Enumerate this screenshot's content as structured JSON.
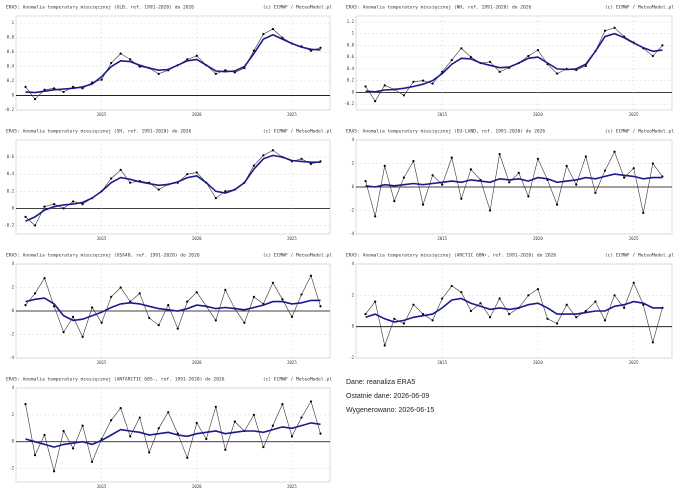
{
  "chart_data": [
    {
      "type": "line",
      "title": "ERA5: Anomalia temperatury miesięcznej (GLB, ref. 1991-2020) do 2026",
      "credit": "(c) ECMWF / MeteoModel.pl",
      "x": [
        2011,
        2011.5,
        2012,
        2012.5,
        2013,
        2013.5,
        2014,
        2014.5,
        2015,
        2015.5,
        2016,
        2016.5,
        2017,
        2017.5,
        2018,
        2018.5,
        2019,
        2019.5,
        2020,
        2020.5,
        2021,
        2021.5,
        2022,
        2022.5,
        2023,
        2023.5,
        2024,
        2024.5,
        2025,
        2025.5,
        2026,
        2026.5
      ],
      "series": [
        {
          "color": "#333333",
          "values": [
            0.12,
            -0.05,
            0.08,
            0.1,
            0.05,
            0.12,
            0.1,
            0.18,
            0.22,
            0.45,
            0.58,
            0.5,
            0.4,
            0.38,
            0.3,
            0.35,
            0.42,
            0.5,
            0.55,
            0.42,
            0.3,
            0.35,
            0.32,
            0.38,
            0.62,
            0.85,
            0.92,
            0.8,
            0.72,
            0.68,
            0.62,
            0.66
          ]
        },
        {
          "color": "#1a1a8c",
          "values": [
            0.05,
            0.04,
            0.06,
            0.08,
            0.09,
            0.1,
            0.12,
            0.16,
            0.26,
            0.4,
            0.48,
            0.47,
            0.42,
            0.38,
            0.35,
            0.36,
            0.42,
            0.48,
            0.5,
            0.42,
            0.34,
            0.33,
            0.34,
            0.4,
            0.58,
            0.78,
            0.84,
            0.78,
            0.72,
            0.67,
            0.64,
            0.63
          ]
        }
      ],
      "xlim": [
        2010.5,
        2027
      ],
      "xticks": [
        2015,
        2020,
        2025
      ],
      "ylim": [
        -0.2,
        1.1
      ],
      "yticks": [
        -0.2,
        0,
        0.2,
        0.4,
        0.6,
        0.8,
        1
      ],
      "grid": true
    },
    {
      "type": "line",
      "title": "ERA5: Anomalia temperatury miesięcznej (NH, ref. 1991-2020) do 2026",
      "credit": "(c) ECMWF / MeteoModel.pl",
      "x": [
        2011,
        2011.5,
        2012,
        2012.5,
        2013,
        2013.5,
        2014,
        2014.5,
        2015,
        2015.5,
        2016,
        2016.5,
        2017,
        2017.5,
        2018,
        2018.5,
        2019,
        2019.5,
        2020,
        2020.5,
        2021,
        2021.5,
        2022,
        2022.5,
        2023,
        2023.5,
        2024,
        2024.5,
        2025,
        2025.5,
        2026,
        2026.5
      ],
      "series": [
        {
          "color": "#333333",
          "values": [
            0.1,
            -0.15,
            0.12,
            0.05,
            -0.05,
            0.18,
            0.2,
            0.15,
            0.35,
            0.55,
            0.75,
            0.6,
            0.5,
            0.52,
            0.35,
            0.42,
            0.5,
            0.62,
            0.72,
            0.48,
            0.32,
            0.4,
            0.38,
            0.45,
            0.7,
            1.05,
            1.1,
            0.95,
            0.85,
            0.75,
            0.62,
            0.8
          ]
        },
        {
          "color": "#1a1a8c",
          "values": [
            0.02,
            0.01,
            0.04,
            0.05,
            0.07,
            0.1,
            0.14,
            0.2,
            0.32,
            0.48,
            0.58,
            0.57,
            0.5,
            0.46,
            0.42,
            0.43,
            0.5,
            0.58,
            0.6,
            0.5,
            0.4,
            0.39,
            0.4,
            0.48,
            0.7,
            0.95,
            1.0,
            0.93,
            0.84,
            0.76,
            0.7,
            0.72
          ]
        }
      ],
      "xlim": [
        2010.5,
        2027
      ],
      "xticks": [
        2015,
        2020,
        2025
      ],
      "ylim": [
        -0.3,
        1.3
      ],
      "yticks": [
        -0.2,
        0,
        0.2,
        0.4,
        0.6,
        0.8,
        1,
        1.2
      ],
      "grid": true
    },
    {
      "type": "line",
      "title": "ERA5: Anomalia temperatury miesięcznej (SH, ref. 1991-2020) do 2026",
      "credit": "(c) ECMWF / MeteoModel.pl",
      "x": [
        2011,
        2011.5,
        2012,
        2012.5,
        2013,
        2013.5,
        2014,
        2014.5,
        2015,
        2015.5,
        2016,
        2016.5,
        2017,
        2017.5,
        2018,
        2018.5,
        2019,
        2019.5,
        2020,
        2020.5,
        2021,
        2021.5,
        2022,
        2022.5,
        2023,
        2023.5,
        2024,
        2024.5,
        2025,
        2025.5,
        2026,
        2026.5
      ],
      "series": [
        {
          "color": "#333333",
          "values": [
            -0.1,
            -0.2,
            0.02,
            0.05,
            0.0,
            0.08,
            0.05,
            0.12,
            0.2,
            0.35,
            0.45,
            0.3,
            0.32,
            0.3,
            0.22,
            0.28,
            0.3,
            0.4,
            0.42,
            0.3,
            0.12,
            0.2,
            0.22,
            0.3,
            0.5,
            0.62,
            0.68,
            0.6,
            0.55,
            0.58,
            0.52,
            0.55
          ]
        },
        {
          "color": "#1a1a8c",
          "values": [
            -0.15,
            -0.1,
            -0.02,
            0.02,
            0.04,
            0.05,
            0.07,
            0.12,
            0.2,
            0.3,
            0.36,
            0.34,
            0.31,
            0.29,
            0.27,
            0.28,
            0.31,
            0.36,
            0.38,
            0.3,
            0.2,
            0.18,
            0.22,
            0.3,
            0.46,
            0.58,
            0.62,
            0.6,
            0.56,
            0.55,
            0.54,
            0.54
          ]
        }
      ],
      "xlim": [
        2010.5,
        2027
      ],
      "xticks": [
        2015,
        2020,
        2025
      ],
      "ylim": [
        -0.3,
        0.8
      ],
      "yticks": [
        -0.2,
        0,
        0.2,
        0.4,
        0.6
      ],
      "grid": true
    },
    {
      "type": "line",
      "title": "ERA5: Anomalia temperatury miesięcznej (EU-LAND, ref. 1991-2020) do 2026",
      "credit": "(c) ECMWF / MeteoModel.pl",
      "x": [
        2011,
        2011.5,
        2012,
        2012.5,
        2013,
        2013.5,
        2014,
        2014.5,
        2015,
        2015.5,
        2016,
        2016.5,
        2017,
        2017.5,
        2018,
        2018.5,
        2019,
        2019.5,
        2020,
        2020.5,
        2021,
        2021.5,
        2022,
        2022.5,
        2023,
        2023.5,
        2024,
        2024.5,
        2025,
        2025.5,
        2026,
        2026.5
      ],
      "series": [
        {
          "color": "#333333",
          "values": [
            0.5,
            -2.5,
            1.8,
            -1.2,
            0.8,
            2.2,
            -1.5,
            1.0,
            0.2,
            2.5,
            -1.0,
            1.5,
            0.6,
            -2.0,
            2.8,
            0.4,
            1.2,
            -0.8,
            2.4,
            0.6,
            -1.5,
            1.8,
            0.2,
            2.6,
            -0.5,
            1.4,
            3.0,
            0.8,
            1.6,
            -2.2,
            2.0,
            0.9
          ]
        },
        {
          "color": "#1a1a8c",
          "values": [
            0.1,
            0.0,
            0.2,
            0.1,
            0.2,
            0.3,
            0.2,
            0.3,
            0.4,
            0.5,
            0.4,
            0.6,
            0.5,
            0.4,
            0.7,
            0.6,
            0.7,
            0.5,
            0.8,
            0.7,
            0.4,
            0.5,
            0.6,
            0.8,
            0.7,
            0.9,
            1.1,
            1.0,
            0.9,
            0.7,
            0.8,
            0.8
          ]
        }
      ],
      "xlim": [
        2010.5,
        2027
      ],
      "xticks": [
        2015,
        2020,
        2025
      ],
      "ylim": [
        -4,
        4
      ],
      "yticks": [
        -4,
        -2,
        0,
        2,
        4
      ],
      "grid": true
    },
    {
      "type": "line",
      "title": "ERA5: Anomalia temperatury miesięcznej (USA48, ref. 1991-2020) do 2026",
      "credit": "(c) ECMWF / MeteoModel.pl",
      "x": [
        2011,
        2011.5,
        2012,
        2012.5,
        2013,
        2013.5,
        2014,
        2014.5,
        2015,
        2015.5,
        2016,
        2016.5,
        2017,
        2017.5,
        2018,
        2018.5,
        2019,
        2019.5,
        2020,
        2020.5,
        2021,
        2021.5,
        2022,
        2022.5,
        2023,
        2023.5,
        2024,
        2024.5,
        2025,
        2025.5,
        2026,
        2026.5
      ],
      "series": [
        {
          "color": "#333333",
          "values": [
            0.5,
            1.5,
            2.8,
            0.4,
            -1.8,
            -0.5,
            -2.2,
            0.3,
            -1.0,
            1.2,
            2.0,
            0.8,
            1.5,
            -0.6,
            -1.2,
            0.5,
            -1.5,
            0.8,
            1.6,
            0.4,
            -0.8,
            1.8,
            0.2,
            -1.0,
            1.2,
            0.6,
            2.4,
            1.0,
            -0.5,
            1.4,
            3.0,
            0.4
          ]
        },
        {
          "color": "#1a1a8c",
          "values": [
            0.8,
            1.0,
            1.1,
            0.6,
            -0.4,
            -0.8,
            -0.7,
            -0.4,
            -0.1,
            0.3,
            0.6,
            0.7,
            0.6,
            0.4,
            0.2,
            0.1,
            0.0,
            0.2,
            0.5,
            0.4,
            0.2,
            0.3,
            0.2,
            0.1,
            0.3,
            0.5,
            0.8,
            0.8,
            0.6,
            0.7,
            0.9,
            0.9
          ]
        }
      ],
      "xlim": [
        2010.5,
        2027
      ],
      "xticks": [
        2015,
        2020,
        2025
      ],
      "ylim": [
        -4,
        4
      ],
      "yticks": [
        -4,
        -2,
        0,
        2,
        4
      ],
      "grid": true
    },
    {
      "type": "line",
      "title": "ERA5: Anomalia temperatury miesięcznej (ARCTIC 60N+, ref. 1991-2020) do 2026",
      "credit": "(c) ECMWF / MeteoModel.pl",
      "x": [
        2011,
        2011.5,
        2012,
        2012.5,
        2013,
        2013.5,
        2014,
        2014.5,
        2015,
        2015.5,
        2016,
        2016.5,
        2017,
        2017.5,
        2018,
        2018.5,
        2019,
        2019.5,
        2020,
        2020.5,
        2021,
        2021.5,
        2022,
        2022.5,
        2023,
        2023.5,
        2024,
        2024.5,
        2025,
        2025.5,
        2026,
        2026.5
      ],
      "series": [
        {
          "color": "#333333",
          "values": [
            0.8,
            1.6,
            -1.2,
            0.5,
            0.2,
            1.4,
            0.8,
            0.4,
            1.8,
            2.6,
            2.2,
            1.0,
            1.5,
            0.6,
            1.8,
            0.8,
            1.2,
            2.0,
            2.4,
            0.5,
            0.2,
            1.4,
            0.6,
            1.0,
            1.6,
            0.4,
            2.0,
            1.2,
            2.8,
            1.4,
            -1.0,
            1.2
          ]
        },
        {
          "color": "#1a1a8c",
          "values": [
            0.6,
            0.8,
            0.5,
            0.3,
            0.4,
            0.6,
            0.7,
            0.8,
            1.2,
            1.7,
            1.8,
            1.5,
            1.3,
            1.1,
            1.2,
            1.1,
            1.2,
            1.4,
            1.5,
            1.2,
            0.8,
            0.8,
            0.8,
            0.9,
            1.0,
            1.0,
            1.3,
            1.4,
            1.6,
            1.5,
            1.2,
            1.2
          ]
        }
      ],
      "xlim": [
        2010.5,
        2027
      ],
      "xticks": [
        2015,
        2020,
        2025
      ],
      "ylim": [
        -2,
        4
      ],
      "yticks": [
        -2,
        0,
        2,
        4
      ],
      "grid": true
    },
    {
      "type": "line",
      "title": "ERA5: Anomalia temperatury miesięcznej (ANTARCTIC 60S-, ref. 1991-2020) do 2026",
      "credit": "(c) ECMWF / MeteoModel.pl",
      "x": [
        2011,
        2011.5,
        2012,
        2012.5,
        2013,
        2013.5,
        2014,
        2014.5,
        2015,
        2015.5,
        2016,
        2016.5,
        2017,
        2017.5,
        2018,
        2018.5,
        2019,
        2019.5,
        2020,
        2020.5,
        2021,
        2021.5,
        2022,
        2022.5,
        2023,
        2023.5,
        2024,
        2024.5,
        2025,
        2025.5,
        2026,
        2026.5
      ],
      "series": [
        {
          "color": "#333333",
          "values": [
            2.8,
            -1.0,
            0.5,
            -2.2,
            0.8,
            -0.5,
            1.2,
            -1.5,
            0.2,
            1.6,
            2.5,
            0.4,
            1.8,
            -0.8,
            1.0,
            2.2,
            0.6,
            -1.2,
            1.4,
            0.2,
            2.6,
            -0.6,
            1.5,
            0.8,
            2.0,
            -0.4,
            1.2,
            2.8,
            0.4,
            1.8,
            3.0,
            0.6
          ]
        },
        {
          "color": "#1a1a8c",
          "values": [
            0.2,
            0.0,
            -0.2,
            -0.4,
            -0.2,
            -0.1,
            0.0,
            -0.2,
            0.1,
            0.5,
            0.9,
            0.8,
            0.7,
            0.5,
            0.6,
            0.7,
            0.5,
            0.4,
            0.6,
            0.7,
            0.8,
            0.6,
            0.7,
            0.8,
            0.8,
            0.7,
            0.9,
            1.1,
            1.0,
            1.2,
            1.4,
            1.3
          ]
        }
      ],
      "xlim": [
        2010.5,
        2027
      ],
      "xticks": [
        2015,
        2020,
        2025
      ],
      "ylim": [
        -3,
        4
      ],
      "yticks": [
        -2,
        0,
        2,
        4
      ],
      "grid": true
    }
  ],
  "info": [
    "Dane: reanaliza ERA5",
    "Ostatnie dane: 2026-06-09",
    "Wygenerowano: 2026-06-15"
  ]
}
